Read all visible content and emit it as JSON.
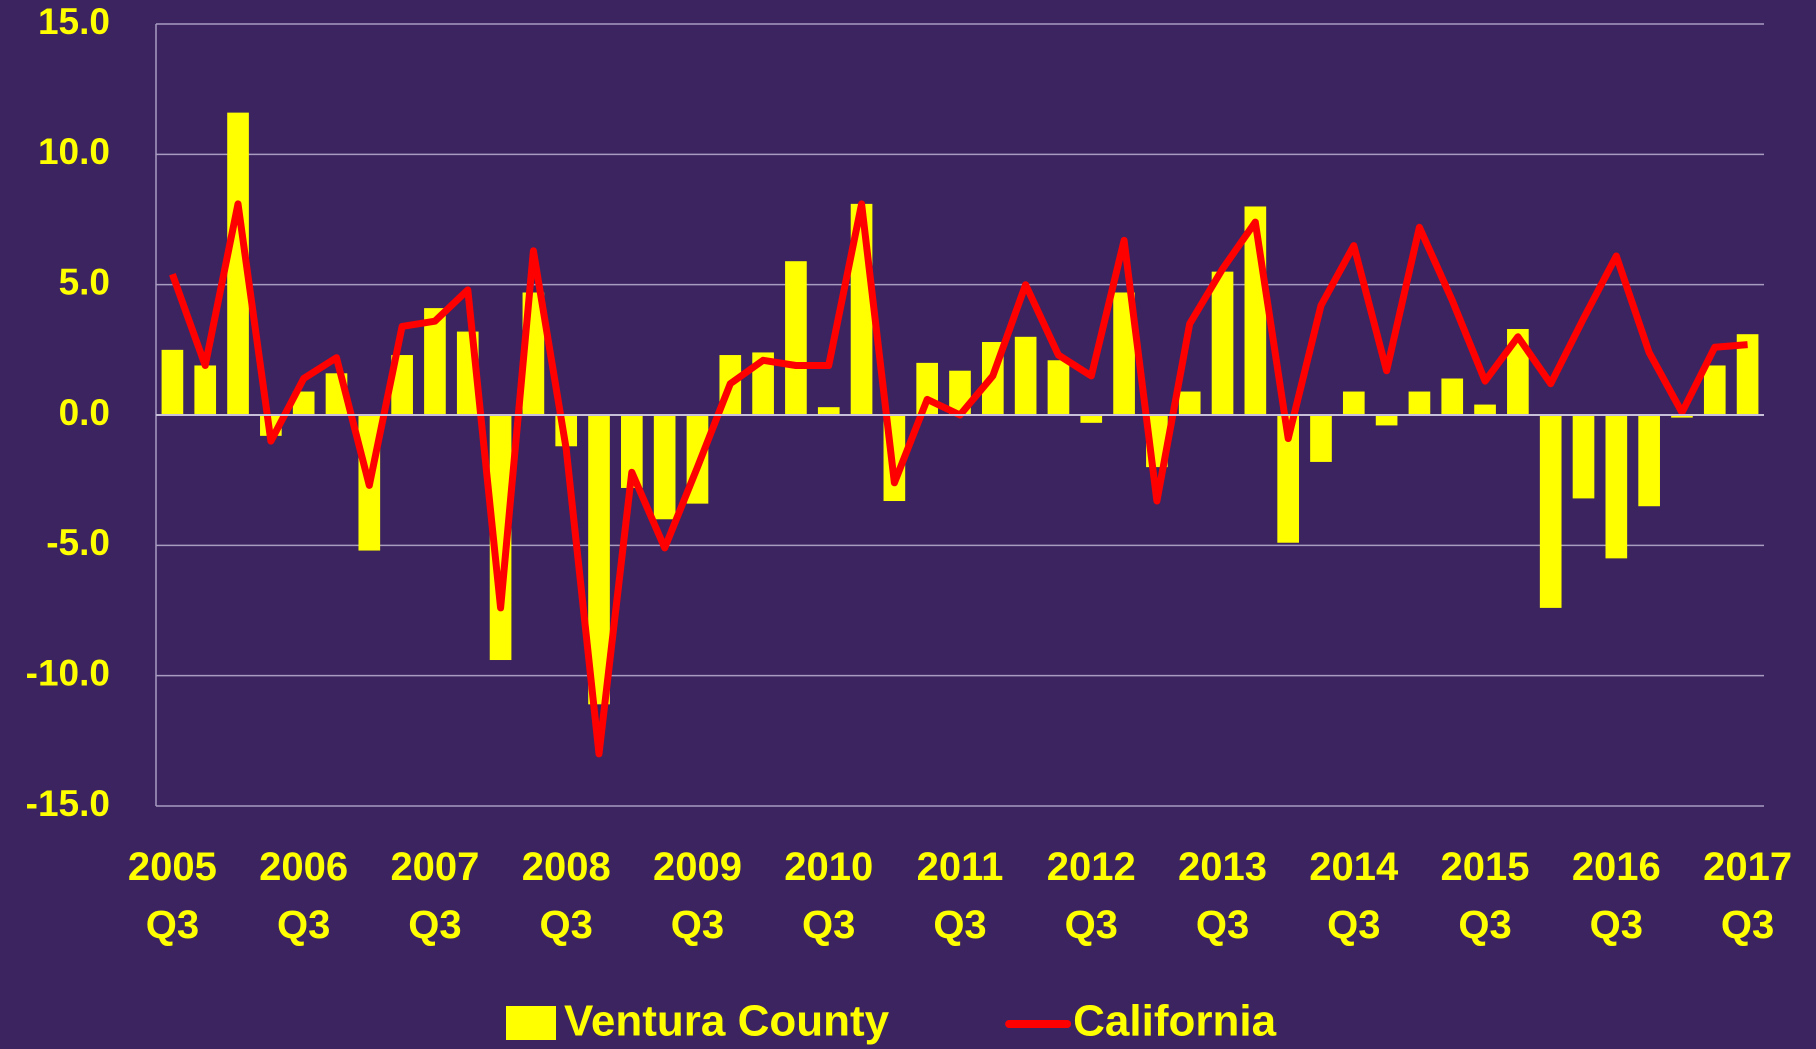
{
  "chart_data": {
    "type": "bar",
    "categories": [
      "2005 Q3",
      null,
      null,
      null,
      "2006 Q3",
      null,
      null,
      null,
      "2007 Q3",
      null,
      null,
      null,
      "2008 Q3",
      null,
      null,
      null,
      "2009 Q3",
      null,
      null,
      null,
      "2010 Q3",
      null,
      null,
      null,
      "2011 Q3",
      null,
      null,
      null,
      "2012 Q3",
      null,
      null,
      null,
      "2013 Q3",
      null,
      null,
      null,
      "2014 Q3",
      null,
      null,
      null,
      "2015 Q3",
      null,
      null,
      null,
      "2016 Q3",
      null,
      null,
      null,
      "2017 Q3"
    ],
    "series": [
      {
        "name": "Ventura County",
        "type": "bar",
        "color": "#ffff00",
        "values": [
          2.5,
          1.9,
          11.6,
          -0.8,
          0.9,
          1.6,
          -5.2,
          2.3,
          4.1,
          3.2,
          -9.4,
          4.7,
          -1.2,
          -11.1,
          -2.8,
          -4.0,
          -3.4,
          2.3,
          2.4,
          5.9,
          0.3,
          8.1,
          -3.3,
          2.0,
          1.7,
          2.8,
          3.0,
          2.1,
          -0.3,
          4.7,
          -2.0,
          0.9,
          5.5,
          8.0,
          -4.9,
          -1.8,
          0.9,
          -0.4,
          0.9,
          1.4,
          0.4,
          3.3,
          -7.4,
          -3.2,
          -5.5,
          -3.5,
          -0.1,
          1.9,
          3.1
        ]
      },
      {
        "name": "California",
        "type": "line",
        "color": "#ff0000",
        "values": [
          5.4,
          1.9,
          8.1,
          -1.0,
          1.4,
          2.2,
          -2.7,
          3.4,
          3.6,
          4.8,
          -7.4,
          6.3,
          -1.3,
          -13.0,
          -2.2,
          -5.1,
          -2.0,
          1.2,
          2.1,
          1.9,
          1.9,
          8.1,
          -2.6,
          0.6,
          0.0,
          1.5,
          5.0,
          2.3,
          1.5,
          6.7,
          -3.3,
          3.5,
          5.6,
          7.4,
          -0.9,
          4.2,
          6.5,
          1.7,
          7.2,
          4.4,
          1.3,
          3.0,
          1.2,
          3.7,
          6.1,
          2.4,
          0.1,
          2.6,
          2.7
        ]
      }
    ],
    "ylim": [
      -15,
      15
    ],
    "yticks": [
      {
        "value": -15,
        "label": "-15.0"
      },
      {
        "value": -10,
        "label": "-10.0"
      },
      {
        "value": -5,
        "label": "-5.0"
      },
      {
        "value": 0,
        "label": "0.0"
      },
      {
        "value": 5,
        "label": "5.0"
      },
      {
        "value": 10,
        "label": "10.0"
      },
      {
        "value": 15,
        "label": "15.0"
      }
    ],
    "grid": true,
    "legend": "bottom"
  }
}
